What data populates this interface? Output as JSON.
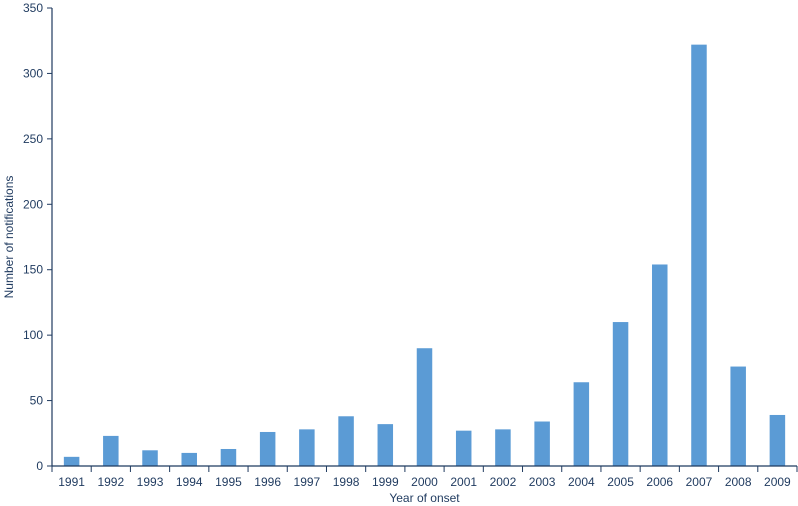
{
  "chart_data": {
    "type": "bar",
    "title": "",
    "xlabel": "Year of onset",
    "ylabel": "Number of notifications",
    "categories": [
      "1991",
      "1992",
      "1993",
      "1994",
      "1995",
      "1996",
      "1997",
      "1998",
      "1999",
      "2000",
      "2001",
      "2002",
      "2003",
      "2004",
      "2005",
      "2006",
      "2007",
      "2008",
      "2009"
    ],
    "values": [
      7,
      23,
      12,
      10,
      13,
      26,
      28,
      38,
      32,
      90,
      27,
      28,
      34,
      64,
      110,
      154,
      322,
      76,
      39
    ],
    "ylim": [
      0,
      350
    ],
    "yticks": [
      0,
      50,
      100,
      150,
      200,
      250,
      300,
      350
    ],
    "grid": false,
    "bar_color": "#5b9bd5",
    "axis_color": "#1f3a5f"
  }
}
